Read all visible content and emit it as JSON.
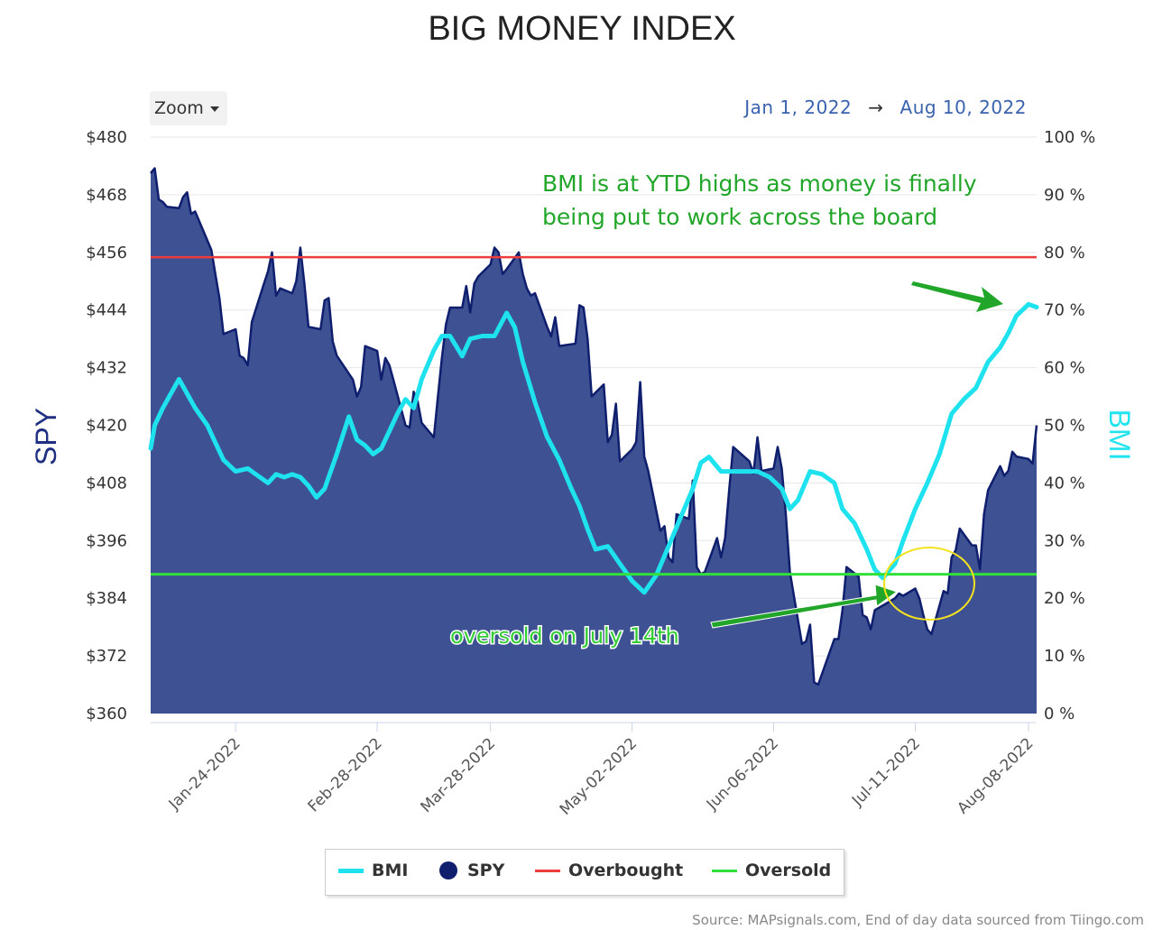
{
  "chart_data": {
    "type": "area",
    "title": "BIG MONEY INDEX",
    "ylabel_left": "SPY",
    "ylabel_right": "BMI",
    "ylim_left": [
      360,
      480
    ],
    "ylim_right": [
      0,
      100
    ],
    "yticks_left": [
      "$480",
      "$468",
      "$456",
      "$444",
      "$432",
      "$420",
      "$408",
      "$396",
      "$384",
      "$372",
      "$360"
    ],
    "yticks_right": [
      "100 %",
      "90 %",
      "80 %",
      "70 %",
      "60 %",
      "50 %",
      "40 %",
      "30 %",
      "20 %",
      "10 %",
      "0 %"
    ],
    "xlim": [
      "2022-01-03",
      "2022-08-10"
    ],
    "xticks": [
      "Jan-24-2022",
      "Feb-28-2022",
      "Mar-28-2022",
      "May-02-2022",
      "Jun-06-2022",
      "Jul-11-2022",
      "Aug-08-2022"
    ],
    "grid": "horizontal",
    "legend": "bottom-center",
    "colors": {
      "BMI": "#1ee3ee",
      "SPY": "#0f1f6e",
      "SPY_fill": "#3e5193",
      "Overbought": "#ee3b3b",
      "Oversold": "#33e039"
    },
    "series": [
      {
        "name": "SPY",
        "x": [
          "2022-01-03",
          "2022-01-04",
          "2022-01-05",
          "2022-01-06",
          "2022-01-07",
          "2022-01-10",
          "2022-01-11",
          "2022-01-12",
          "2022-01-13",
          "2022-01-14",
          "2022-01-18",
          "2022-01-19",
          "2022-01-20",
          "2022-01-21",
          "2022-01-24",
          "2022-01-25",
          "2022-01-26",
          "2022-01-27",
          "2022-01-28",
          "2022-01-31",
          "2022-02-01",
          "2022-02-02",
          "2022-02-03",
          "2022-02-04",
          "2022-02-07",
          "2022-02-08",
          "2022-02-09",
          "2022-02-10",
          "2022-02-11",
          "2022-02-14",
          "2022-02-15",
          "2022-02-16",
          "2022-02-17",
          "2022-02-18",
          "2022-02-22",
          "2022-02-23",
          "2022-02-24",
          "2022-02-25",
          "2022-02-28",
          "2022-03-01",
          "2022-03-02",
          "2022-03-03",
          "2022-03-04",
          "2022-03-07",
          "2022-03-08",
          "2022-03-09",
          "2022-03-10",
          "2022-03-11",
          "2022-03-14",
          "2022-03-15",
          "2022-03-16",
          "2022-03-17",
          "2022-03-18",
          "2022-03-21",
          "2022-03-22",
          "2022-03-23",
          "2022-03-24",
          "2022-03-25",
          "2022-03-28",
          "2022-03-29",
          "2022-03-30",
          "2022-03-31",
          "2022-04-01",
          "2022-04-04",
          "2022-04-05",
          "2022-04-06",
          "2022-04-07",
          "2022-04-08",
          "2022-04-11",
          "2022-04-12",
          "2022-04-13",
          "2022-04-14",
          "2022-04-18",
          "2022-04-19",
          "2022-04-20",
          "2022-04-21",
          "2022-04-22",
          "2022-04-25",
          "2022-04-26",
          "2022-04-27",
          "2022-04-28",
          "2022-04-29",
          "2022-05-02",
          "2022-05-03",
          "2022-05-04",
          "2022-05-05",
          "2022-05-06",
          "2022-05-09",
          "2022-05-10",
          "2022-05-11",
          "2022-05-12",
          "2022-05-13",
          "2022-05-16",
          "2022-05-17",
          "2022-05-18",
          "2022-05-19",
          "2022-05-20",
          "2022-05-23",
          "2022-05-24",
          "2022-05-25",
          "2022-05-26",
          "2022-05-27",
          "2022-05-31",
          "2022-06-01",
          "2022-06-02",
          "2022-06-03",
          "2022-06-06",
          "2022-06-07",
          "2022-06-08",
          "2022-06-09",
          "2022-06-10",
          "2022-06-13",
          "2022-06-14",
          "2022-06-15",
          "2022-06-16",
          "2022-06-17",
          "2022-06-21",
          "2022-06-22",
          "2022-06-23",
          "2022-06-24",
          "2022-06-27",
          "2022-06-28",
          "2022-06-29",
          "2022-06-30",
          "2022-07-01",
          "2022-07-05",
          "2022-07-06",
          "2022-07-07",
          "2022-07-08",
          "2022-07-11",
          "2022-07-12",
          "2022-07-13",
          "2022-07-14",
          "2022-07-15",
          "2022-07-18",
          "2022-07-19",
          "2022-07-20",
          "2022-07-21",
          "2022-07-22",
          "2022-07-25",
          "2022-07-26",
          "2022-07-27",
          "2022-07-28",
          "2022-07-29",
          "2022-08-01",
          "2022-08-02",
          "2022-08-03",
          "2022-08-04",
          "2022-08-05",
          "2022-08-08",
          "2022-08-09",
          "2022-08-10"
        ],
        "values": [
          472.5,
          473.5,
          467.0,
          466.5,
          465.5,
          465.2,
          467.5,
          468.5,
          464.0,
          464.5,
          456.5,
          451.5,
          446.5,
          439.0,
          440.0,
          434.5,
          434.0,
          432.5,
          441.5,
          449.5,
          452.0,
          456.0,
          447.0,
          448.5,
          447.5,
          450.0,
          457.0,
          449.5,
          440.5,
          440.0,
          446.0,
          446.5,
          437.5,
          434.5,
          429.5,
          426.0,
          428.0,
          436.5,
          435.5,
          429.5,
          434.0,
          432.5,
          429.5,
          420.0,
          419.5,
          427.0,
          425.0,
          420.5,
          417.5,
          426.0,
          434.0,
          441.0,
          444.5,
          444.5,
          449.0,
          443.5,
          449.5,
          451.0,
          453.5,
          457.0,
          456.0,
          451.5,
          452.5,
          456.0,
          451.5,
          448.5,
          447.0,
          447.5,
          440.5,
          438.5,
          442.5,
          436.5,
          437.0,
          445.0,
          444.5,
          438.0,
          426.0,
          428.5,
          416.5,
          418.0,
          424.5,
          412.5,
          415.0,
          416.5,
          429.0,
          413.5,
          410.5,
          398.0,
          399.0,
          392.5,
          391.5,
          401.5,
          400.5,
          408.5,
          390.5,
          389.0,
          389.5,
          396.5,
          392.5,
          396.5,
          406.5,
          415.5,
          412.5,
          410.0,
          417.5,
          410.5,
          411.0,
          415.5,
          411.0,
          401.5,
          389.5,
          374.5,
          375.0,
          378.5,
          366.5,
          366.0,
          375.5,
          375.5,
          381.5,
          390.5,
          388.5,
          380.5,
          380.0,
          377.5,
          381.5,
          383.5,
          384.0,
          385.0,
          384.5,
          386.0,
          384.0,
          380.5,
          377.5,
          376.5,
          385.5,
          385.0,
          392.5,
          394.0,
          398.5,
          395.0,
          395.0,
          390.0,
          401.5,
          406.5,
          411.5,
          409.5,
          410.5,
          414.5,
          413.5,
          413.0,
          412.0,
          420.0
        ]
      },
      {
        "name": "BMI",
        "x": [
          "2022-01-03",
          "2022-01-04",
          "2022-01-06",
          "2022-01-08",
          "2022-01-10",
          "2022-01-12",
          "2022-01-14",
          "2022-01-17",
          "2022-01-19",
          "2022-01-21",
          "2022-01-24",
          "2022-01-27",
          "2022-01-30",
          "2022-02-01",
          "2022-02-03",
          "2022-02-05",
          "2022-02-07",
          "2022-02-09",
          "2022-02-11",
          "2022-02-13",
          "2022-02-15",
          "2022-02-18",
          "2022-02-21",
          "2022-02-23",
          "2022-02-25",
          "2022-02-27",
          "2022-03-01",
          "2022-03-03",
          "2022-03-05",
          "2022-03-07",
          "2022-03-09",
          "2022-03-11",
          "2022-03-14",
          "2022-03-16",
          "2022-03-18",
          "2022-03-21",
          "2022-03-23",
          "2022-03-26",
          "2022-03-29",
          "2022-04-01",
          "2022-04-03",
          "2022-04-05",
          "2022-04-08",
          "2022-04-11",
          "2022-04-14",
          "2022-04-17",
          "2022-04-19",
          "2022-04-21",
          "2022-04-23",
          "2022-04-26",
          "2022-04-29",
          "2022-05-02",
          "2022-05-05",
          "2022-05-08",
          "2022-05-11",
          "2022-05-14",
          "2022-05-17",
          "2022-05-19",
          "2022-05-21",
          "2022-05-24",
          "2022-05-27",
          "2022-05-30",
          "2022-06-02",
          "2022-06-05",
          "2022-06-08",
          "2022-06-10",
          "2022-06-12",
          "2022-06-15",
          "2022-06-18",
          "2022-06-21",
          "2022-06-23",
          "2022-06-26",
          "2022-06-29",
          "2022-07-01",
          "2022-07-03",
          "2022-07-06",
          "2022-07-08",
          "2022-07-11",
          "2022-07-14",
          "2022-07-17",
          "2022-07-20",
          "2022-07-23",
          "2022-07-26",
          "2022-07-29",
          "2022-08-01",
          "2022-08-03",
          "2022-08-05",
          "2022-08-08",
          "2022-08-10"
        ],
        "values": [
          46.0,
          50.0,
          53.0,
          55.5,
          58.0,
          55.5,
          53.0,
          50.0,
          47.0,
          44.0,
          42.0,
          42.5,
          41.0,
          40.0,
          41.5,
          41.0,
          41.5,
          41.0,
          39.5,
          37.5,
          39.0,
          45.0,
          51.5,
          47.5,
          46.5,
          45.0,
          46.0,
          49.0,
          52.0,
          54.5,
          53.0,
          58.0,
          63.0,
          65.5,
          65.5,
          62.0,
          65.0,
          65.5,
          65.5,
          69.5,
          67.0,
          61.0,
          54.0,
          48.0,
          44.0,
          39.0,
          36.0,
          32.0,
          28.5,
          29.0,
          26.0,
          23.0,
          21.0,
          24.0,
          29.0,
          34.0,
          39.0,
          43.5,
          44.5,
          42.0,
          42.0,
          42.0,
          42.0,
          41.0,
          39.0,
          35.5,
          37.0,
          42.0,
          41.5,
          40.0,
          35.5,
          33.0,
          28.5,
          25.0,
          23.5,
          26.0,
          30.0,
          35.5,
          40.0,
          45.0,
          52.0,
          54.5,
          56.5,
          61.0,
          63.5,
          66.0,
          69.0,
          71.0,
          70.5
        ]
      }
    ],
    "overbought_level": 455,
    "oversold_level": 389,
    "annotations": {
      "top_line1": "BMI is at YTD highs as money is finally",
      "top_line2": "being put to work across the board",
      "oversold": "oversold on July 14th"
    }
  },
  "range_selector": {
    "zoom_label": "Zoom",
    "from": "Jan 1, 2022",
    "arrow": "→",
    "to": "Aug 10, 2022"
  },
  "legend": {
    "items": [
      {
        "label": "BMI"
      },
      {
        "label": "SPY"
      },
      {
        "label": "Overbought"
      },
      {
        "label": "Oversold"
      }
    ]
  },
  "footer": {
    "source": "Source: MAPsignals.com, End of day data sourced from Tiingo.com"
  }
}
